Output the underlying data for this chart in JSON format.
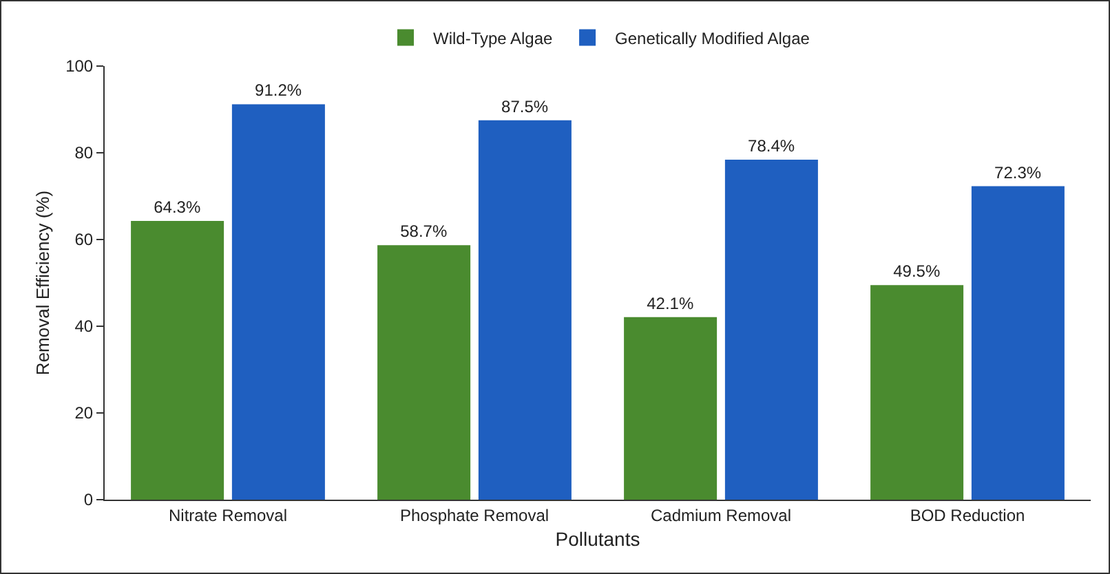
{
  "chart_data": {
    "type": "bar",
    "xlabel": "Pollutants",
    "ylabel": "Removal Efficiency (%)",
    "categories": [
      "Nitrate Removal",
      "Phosphate Removal",
      "Cadmium Removal",
      "BOD Reduction"
    ],
    "series": [
      {
        "name": "Wild-Type Algae",
        "color": "#4a8b2f",
        "values": [
          64.3,
          58.7,
          42.1,
          49.5
        ],
        "value_labels": [
          "64.3%",
          "58.7%",
          "42.1%",
          "49.5%"
        ]
      },
      {
        "name": "Genetically Modified Algae",
        "color": "#1f5fc0",
        "values": [
          91.2,
          87.5,
          78.4,
          72.3
        ],
        "value_labels": [
          "91.2%",
          "87.5%",
          "78.4%",
          "72.3%"
        ]
      }
    ],
    "ylim": [
      0,
      100
    ],
    "yticks": [
      0,
      20,
      40,
      60,
      80,
      100
    ],
    "grid": false,
    "legend": "top"
  }
}
